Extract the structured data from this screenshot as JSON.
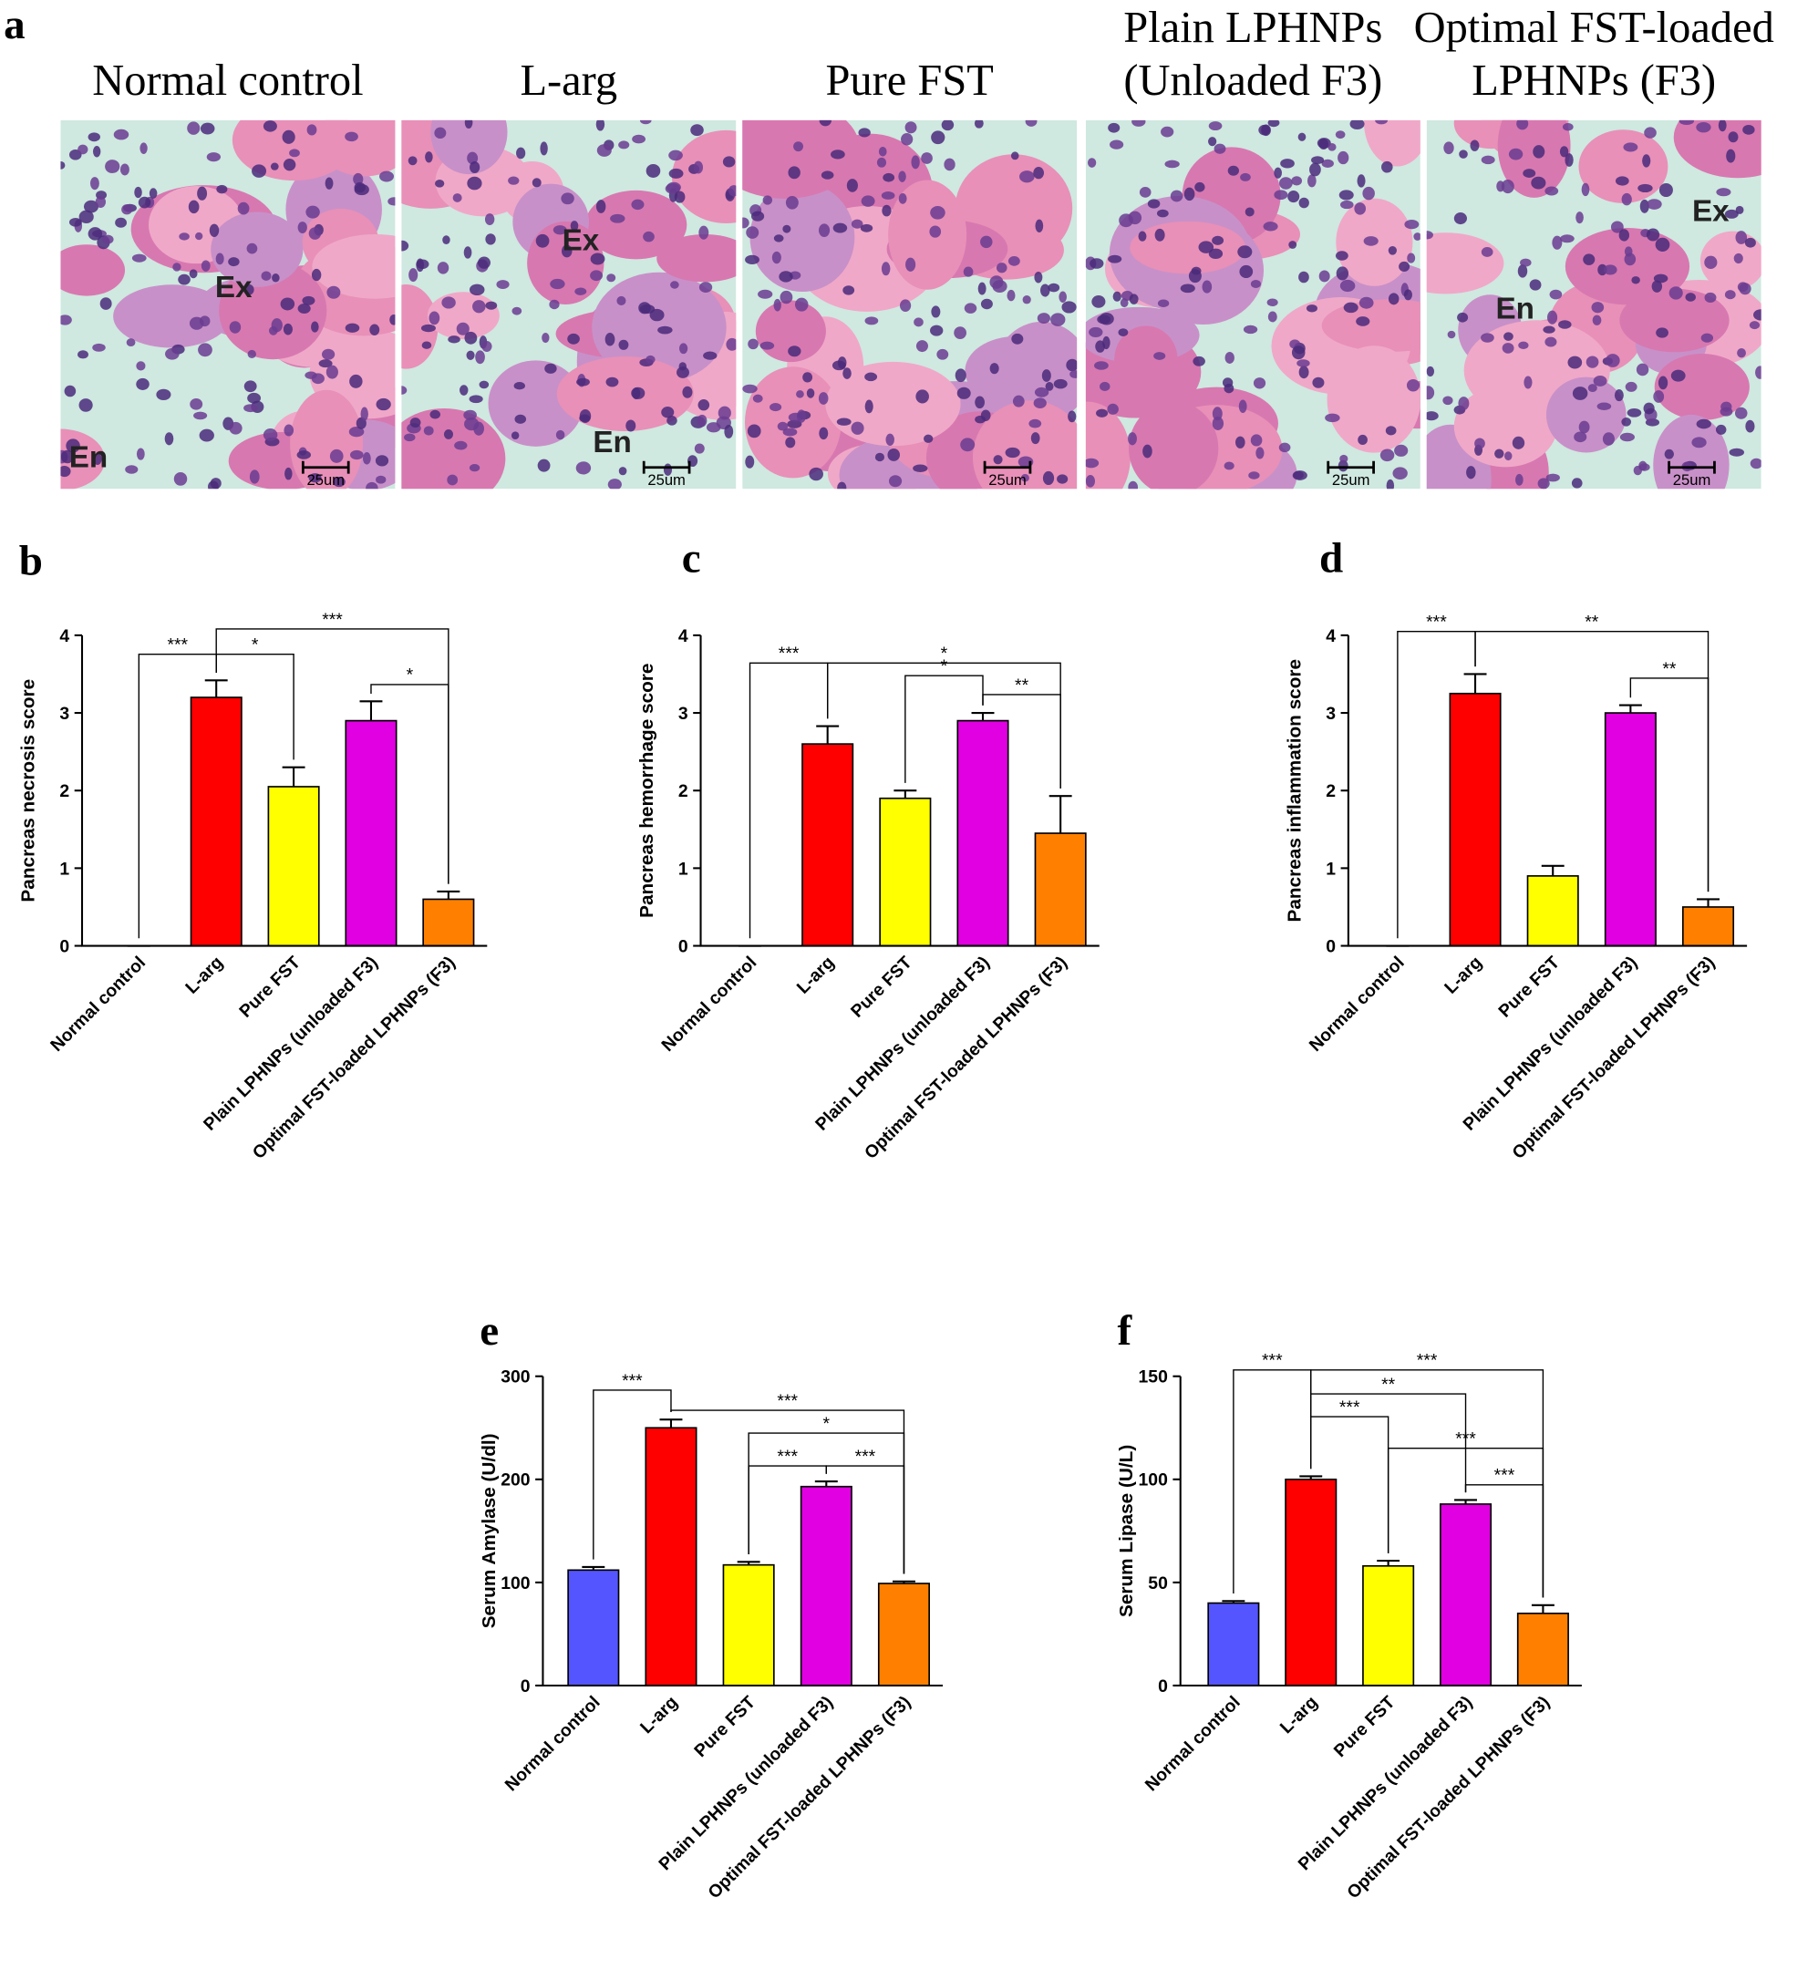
{
  "panel_a": {
    "letter": "a",
    "images": [
      {
        "title": [
          "Normal control"
        ],
        "labels": [
          "Ex",
          "En"
        ],
        "scale": "25um"
      },
      {
        "title": [
          "L-arg"
        ],
        "labels": [
          "Ex",
          "En"
        ],
        "scale": "25um"
      },
      {
        "title": [
          "Pure FST"
        ],
        "labels": [],
        "scale": "25um"
      },
      {
        "title": [
          "Plain LPHNPs",
          "(Unloaded F3)"
        ],
        "labels": [],
        "scale": "25um"
      },
      {
        "title": [
          "Optimal FST-loaded",
          "LPHNPs (F3)"
        ],
        "labels": [
          "Ex",
          "En"
        ],
        "scale": "25um"
      }
    ]
  },
  "chart_data": [
    {
      "type": "bar",
      "panel": "b",
      "y_label": "Pancreas necrosis score",
      "categories": [
        "Normal control",
        "L-arg",
        "Pure FST",
        "Plain LPHNPs (unloaded F3)",
        "Optimal FST-loaded LPHNPs (F3)"
      ],
      "values": [
        0,
        3.2,
        2.05,
        2.9,
        0.6
      ],
      "errors": [
        0,
        0.22,
        0.25,
        0.25,
        0.1
      ],
      "colors": [
        "#5555ff",
        "#ff0000",
        "#ffff00",
        "#e100e1",
        "#ff8000"
      ],
      "ylim": [
        0,
        4
      ],
      "yticks": [
        0,
        1,
        2,
        3,
        4
      ],
      "annotations": [
        "***",
        "*",
        "***",
        "*"
      ]
    },
    {
      "type": "bar",
      "panel": "c",
      "y_label": "Pancreas hemorrhage score",
      "categories": [
        "Normal control",
        "L-arg",
        "Pure FST",
        "Plain LPHNPs (unloaded F3)",
        "Optimal FST-loaded LPHNPs (F3)"
      ],
      "values": [
        0,
        2.6,
        1.9,
        2.9,
        1.45
      ],
      "errors": [
        0,
        0.23,
        0.1,
        0.1,
        0.48
      ],
      "colors": [
        "#5555ff",
        "#ff0000",
        "#ffff00",
        "#e100e1",
        "#ff8000"
      ],
      "ylim": [
        0,
        4
      ],
      "yticks": [
        0,
        1,
        2,
        3,
        4
      ],
      "annotations": [
        "***",
        "*",
        "*",
        "**"
      ]
    },
    {
      "type": "bar",
      "panel": "d",
      "y_label": "Pancreas inflammation score",
      "categories": [
        "Normal control",
        "L-arg",
        "Pure FST",
        "Plain LPHNPs (unloaded F3)",
        "Optimal FST-loaded LPHNPs (F3)"
      ],
      "values": [
        0,
        3.25,
        0.9,
        3.0,
        0.5
      ],
      "errors": [
        0,
        0.25,
        0.13,
        0.1,
        0.1
      ],
      "colors": [
        "#5555ff",
        "#ff0000",
        "#ffff00",
        "#e100e1",
        "#ff8000"
      ],
      "ylim": [
        0,
        4
      ],
      "yticks": [
        0,
        1,
        2,
        3,
        4
      ],
      "annotations": [
        "***",
        "**",
        "**"
      ]
    },
    {
      "type": "bar",
      "panel": "e",
      "y_label": "Serum Amylase (U/dl)",
      "categories": [
        "Normal control",
        "L-arg",
        "Pure FST",
        "Plain LPHNPs (unloaded F3)",
        "Optimal FST-loaded LPHNPs (F3)"
      ],
      "values": [
        112,
        250,
        117,
        193,
        99
      ],
      "errors": [
        3,
        8,
        3,
        5,
        2
      ],
      "colors": [
        "#5555ff",
        "#ff0000",
        "#ffff00",
        "#e100e1",
        "#ff8000"
      ],
      "ylim": [
        0,
        300
      ],
      "yticks": [
        0,
        100,
        200,
        300
      ],
      "annotations": [
        "***",
        "***",
        "*",
        "***",
        "***"
      ]
    },
    {
      "type": "bar",
      "panel": "f",
      "y_label": "Serum Lipase (U/L)",
      "categories": [
        "Normal control",
        "L-arg",
        "Pure FST",
        "Plain LPHNPs (unloaded F3)",
        "Optimal FST-loaded LPHNPs (F3)"
      ],
      "values": [
        40,
        100,
        58,
        88,
        35
      ],
      "errors": [
        1,
        1.5,
        2.5,
        2,
        4
      ],
      "colors": [
        "#5555ff",
        "#ff0000",
        "#ffff00",
        "#e100e1",
        "#ff8000"
      ],
      "ylim": [
        0,
        150
      ],
      "yticks": [
        0,
        50,
        100,
        150
      ],
      "annotations": [
        "***",
        "***",
        "**",
        "***",
        "***",
        "***"
      ]
    }
  ]
}
